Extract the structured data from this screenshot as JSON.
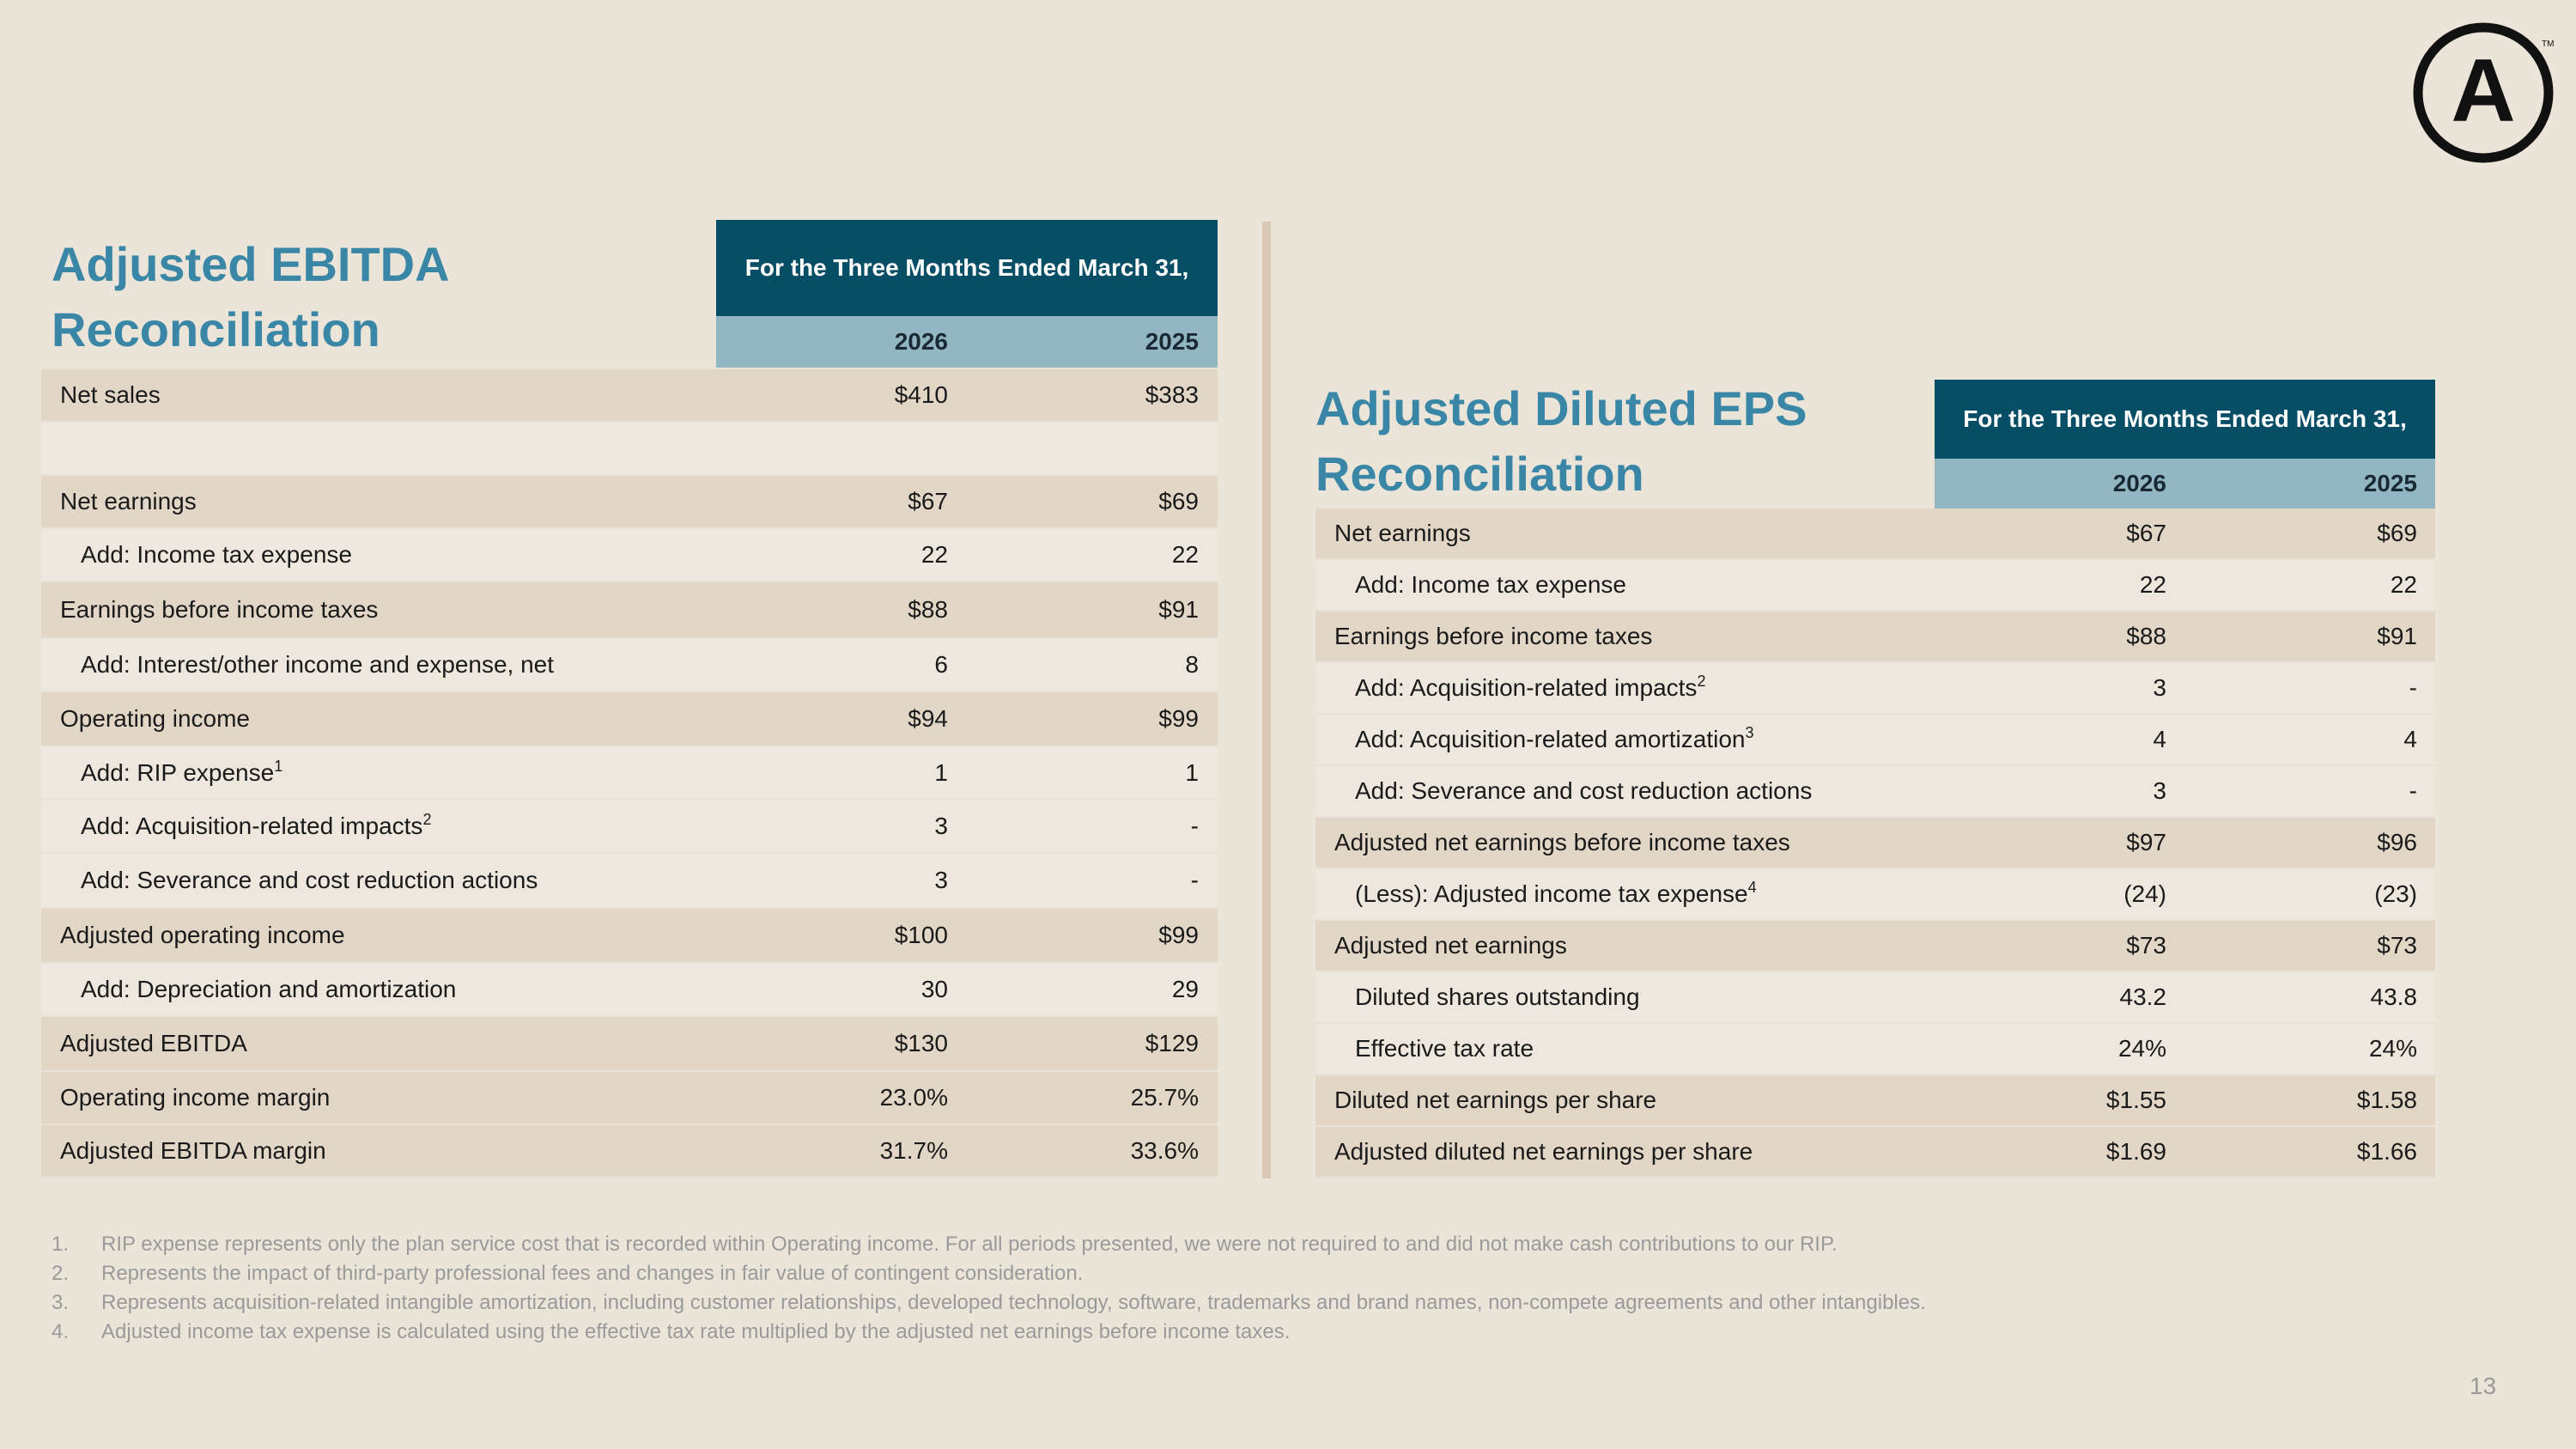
{
  "logo": {
    "letter": "A",
    "tm": "TM"
  },
  "ebitda": {
    "title_line1": "Adjusted EBITDA",
    "title_line2": "Reconciliation",
    "period_header": "For the Three Months Ended March 31,",
    "year1": "2026",
    "year2": "2025",
    "rows": [
      {
        "label": "Net sales",
        "sup": "",
        "v1": "$410",
        "v2": "$383",
        "indent": false,
        "shade": true
      },
      {
        "label": "",
        "sup": "",
        "v1": "",
        "v2": "",
        "indent": false,
        "shade": false
      },
      {
        "label": "Net earnings",
        "sup": "",
        "v1": "$67",
        "v2": "$69",
        "indent": false,
        "shade": true
      },
      {
        "label": "Add: Income tax expense",
        "sup": "",
        "v1": "22",
        "v2": "22",
        "indent": true,
        "shade": false
      },
      {
        "label": "Earnings before income taxes",
        "sup": "",
        "v1": "$88",
        "v2": "$91",
        "indent": false,
        "shade": true
      },
      {
        "label": "Add: Interest/other income and expense, net",
        "sup": "",
        "v1": "6",
        "v2": "8",
        "indent": true,
        "shade": false
      },
      {
        "label": "Operating income",
        "sup": "",
        "v1": "$94",
        "v2": "$99",
        "indent": false,
        "shade": true
      },
      {
        "label": "Add: RIP expense",
        "sup": "1",
        "v1": "1",
        "v2": "1",
        "indent": true,
        "shade": false
      },
      {
        "label": "Add: Acquisition-related impacts",
        "sup": "2",
        "v1": "3",
        "v2": "-",
        "indent": true,
        "shade": false
      },
      {
        "label": "Add: Severance and cost reduction actions",
        "sup": "",
        "v1": "3",
        "v2": "-",
        "indent": true,
        "shade": false
      },
      {
        "label": "Adjusted operating income",
        "sup": "",
        "v1": "$100",
        "v2": "$99",
        "indent": false,
        "shade": true
      },
      {
        "label": "Add: Depreciation and amortization",
        "sup": "",
        "v1": "30",
        "v2": "29",
        "indent": true,
        "shade": false
      },
      {
        "label": "Adjusted EBITDA",
        "sup": "",
        "v1": "$130",
        "v2": "$129",
        "indent": false,
        "shade": true
      },
      {
        "label": "Operating income margin",
        "sup": "",
        "v1": "23.0%",
        "v2": "25.7%",
        "indent": false,
        "shade": true
      },
      {
        "label": "Adjusted EBITDA margin",
        "sup": "",
        "v1": "31.7%",
        "v2": "33.6%",
        "indent": false,
        "shade": true
      }
    ]
  },
  "eps": {
    "title_line1": "Adjusted Diluted EPS",
    "title_line2": "Reconciliation",
    "period_header": "For the Three Months Ended March 31,",
    "year1": "2026",
    "year2": "2025",
    "rows": [
      {
        "label": "Net earnings",
        "sup": "",
        "v1": "$67",
        "v2": "$69",
        "indent": false,
        "shade": true
      },
      {
        "label": "Add: Income tax expense",
        "sup": "",
        "v1": "22",
        "v2": "22",
        "indent": true,
        "shade": false
      },
      {
        "label": "Earnings before income taxes",
        "sup": "",
        "v1": "$88",
        "v2": "$91",
        "indent": false,
        "shade": true
      },
      {
        "label": "Add: Acquisition-related impacts",
        "sup": "2",
        "v1": "3",
        "v2": "-",
        "indent": true,
        "shade": false
      },
      {
        "label": "Add: Acquisition-related amortization",
        "sup": "3",
        "v1": "4",
        "v2": "4",
        "indent": true,
        "shade": false
      },
      {
        "label": " Add: Severance and cost reduction actions",
        "sup": "",
        "v1": "3",
        "v2": "-",
        "indent": true,
        "shade": false
      },
      {
        "label": "Adjusted net earnings before income taxes",
        "sup": "",
        "v1": "$97",
        "v2": "$96",
        "indent": false,
        "shade": true
      },
      {
        "label": "(Less): Adjusted income tax expense",
        "sup": "4",
        "v1": "(24)",
        "v2": "(23)",
        "indent": true,
        "shade": false
      },
      {
        "label": "Adjusted net earnings",
        "sup": "",
        "v1": "$73",
        "v2": "$73",
        "indent": false,
        "shade": true
      },
      {
        "label": "Diluted shares outstanding",
        "sup": "",
        "v1": "43.2",
        "v2": "43.8",
        "indent": true,
        "shade": false
      },
      {
        "label": "Effective tax rate",
        "sup": "",
        "v1": "24%",
        "v2": "24%",
        "indent": true,
        "shade": false
      },
      {
        "label": "Diluted net earnings per share",
        "sup": "",
        "v1": "$1.55",
        "v2": "$1.58",
        "indent": false,
        "shade": true
      },
      {
        "label": "Adjusted diluted net earnings per share",
        "sup": "",
        "v1": "$1.69",
        "v2": "$1.66",
        "indent": false,
        "shade": true
      }
    ]
  },
  "footnotes": [
    {
      "num": "1.",
      "text": "RIP expense represents only the plan service cost that is recorded within Operating income. For all periods presented, we were not required to and did not make cash contributions to our RIP."
    },
    {
      "num": "2.",
      "text": "Represents the impact of third-party professional fees and changes in fair value of contingent consideration."
    },
    {
      "num": "3.",
      "text": "Represents acquisition-related intangible amortization, including customer relationships, developed technology, software, trademarks and brand names, non-compete agreements and other intangibles."
    },
    {
      "num": "4.",
      "text": "Adjusted income tax expense is calculated using the effective tax rate multiplied by the adjusted net earnings before income taxes."
    }
  ],
  "page_number": "13"
}
